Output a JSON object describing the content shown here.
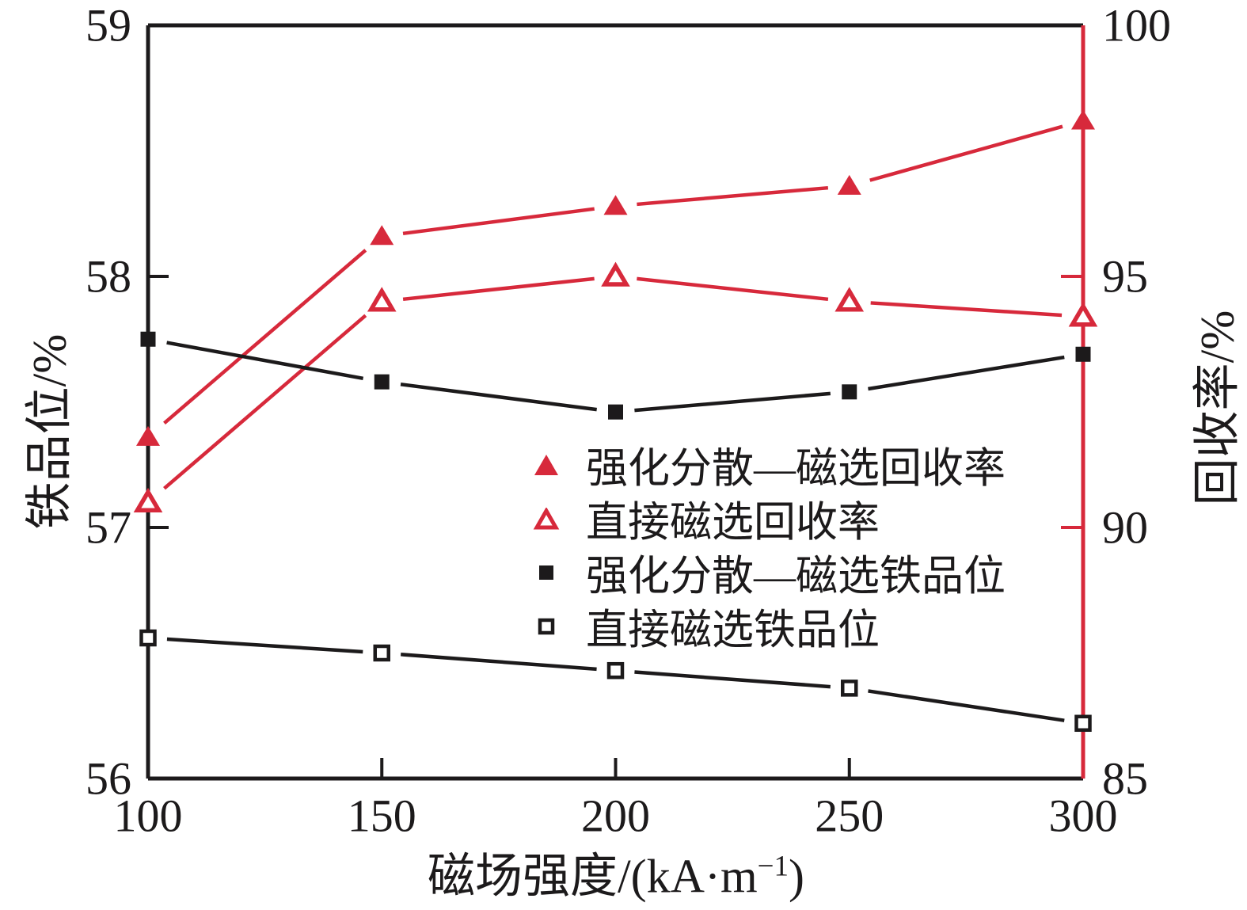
{
  "chart_data": {
    "type": "line",
    "x": [
      100,
      150,
      200,
      250,
      300
    ],
    "x_axis": {
      "label_pre": "磁场强度/(kA·m",
      "label_sup": "−1",
      "label_post": ")",
      "min": 100,
      "max": 300,
      "ticks": [
        100,
        150,
        200,
        250,
        300
      ],
      "tick_labels": [
        "100",
        "150",
        "200",
        "250",
        "300"
      ]
    },
    "left_axis": {
      "label": "铁品位/%",
      "min": 56,
      "max": 59,
      "ticks": [
        59,
        58,
        57,
        56
      ],
      "tick_labels": [
        "59",
        "58",
        "57",
        "56"
      ]
    },
    "right_axis": {
      "label": "回收率/%",
      "min": 85,
      "max": 100,
      "ticks": [
        100,
        95,
        90,
        85
      ],
      "tick_labels": [
        "100",
        "95",
        "90",
        "85"
      ]
    },
    "series": [
      {
        "name": "强化分散—磁选回收率",
        "axis": "right",
        "marker": "triangle-filled",
        "color_key": "red",
        "values": [
          91.8,
          95.8,
          96.4,
          96.8,
          98.1
        ]
      },
      {
        "name": "直接磁选回收率",
        "axis": "right",
        "marker": "triangle-open",
        "color_key": "red",
        "values": [
          90.5,
          94.5,
          95.0,
          94.5,
          94.2
        ]
      },
      {
        "name": "强化分散—磁选铁品位",
        "axis": "left",
        "marker": "square-filled",
        "color_key": "black",
        "values": [
          57.75,
          57.58,
          57.46,
          57.54,
          57.69
        ]
      },
      {
        "name": "直接磁选铁品位",
        "axis": "left",
        "marker": "square-open",
        "color_key": "black",
        "values": [
          56.56,
          56.5,
          56.43,
          56.36,
          56.22
        ]
      }
    ],
    "legend_position": "inside-right-middle",
    "grid": false
  },
  "colors": {
    "red": "#d7293b",
    "black": "#1c1a1b",
    "background": "#ffffff"
  }
}
